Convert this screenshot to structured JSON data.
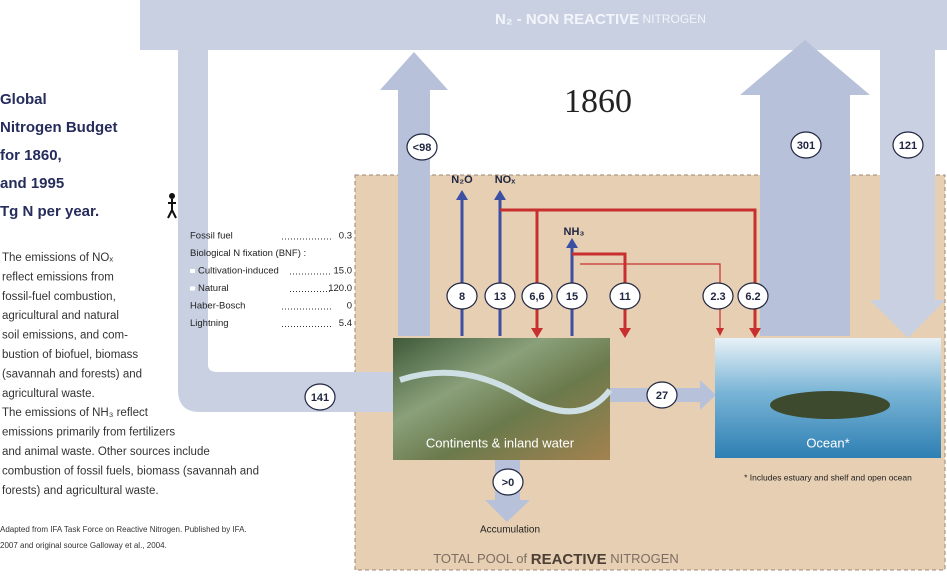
{
  "header": {
    "species": "N₂",
    "title": " - NON REACTIVE",
    "suffix": " NITROGEN"
  },
  "year": "1860",
  "sidebar": {
    "title_lines": [
      "Global",
      "Nitrogen Budget",
      "for 1860,",
      "and 1995",
      "Tg N per year."
    ],
    "paragraph_lines": [
      "The emissions of NOₓ",
      "reflect emissions from",
      "fossil-fuel combustion,",
      "agricultural and natural",
      "soil emissions, and com-",
      "bustion of biofuel, biomass",
      "(savannah and forests) and",
      "agricultural waste.",
      "The emissions of NH₃ reflect",
      "emissions primarily from fertilizers",
      "and animal waste. Other sources include",
      "combustion of fossil fuels, biomass (savannah and",
      "forests) and agricultural waste."
    ],
    "source_lines": [
      "Adapted from IFA Task Force on Reactive Nitrogen. Published by IFA.",
      "2007 and original source Galloway et al., 2004."
    ]
  },
  "sources": [
    {
      "name": "Fossil fuel",
      "value": "0.3"
    },
    {
      "name": "Biological N fixation (BNF) :"
    },
    {
      "name": "Cultivation-induced",
      "value": "15.0"
    },
    {
      "name": "Natural",
      "value": "120.0"
    },
    {
      "name": "Haber-Bosch",
      "value": "0"
    },
    {
      "name": "Lightning",
      "value": "5.4"
    }
  ],
  "species": {
    "n2o": "N₂O",
    "nox": "NOₓ",
    "nh3": "NH₃"
  },
  "flows": {
    "to_n2": "<98",
    "n2_up": "301",
    "n2_down": "121",
    "input": "141",
    "to_ocean": "27",
    "accumulation": ">0",
    "n2o": "8",
    "nox": "13",
    "nox_land": "6,6",
    "nh3": "15",
    "nh3_land": "11",
    "nh3_ocean": "2.3",
    "nox_ocean": "6.2"
  },
  "boxes": {
    "land": "Continents & inland water",
    "ocean": "Ocean*",
    "ocean_note": "* Includes estuary and shelf and open ocean",
    "accumulation": "Accumulation"
  },
  "footer": {
    "prefix": "TOTAL POOL of ",
    "bold": "REACTIVE",
    "suffix": " NITROGEN"
  }
}
